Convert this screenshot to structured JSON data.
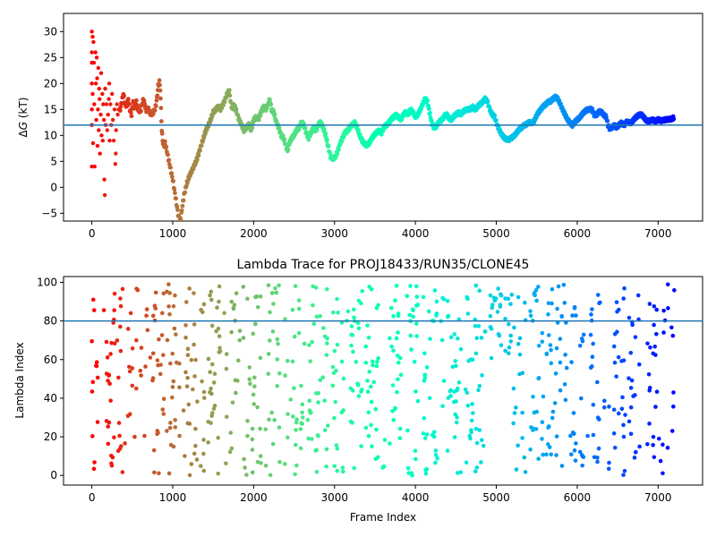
{
  "chart_data": [
    {
      "type": "scatter",
      "title": "",
      "xlabel": "",
      "ylabel": "ΔG (kT)",
      "ylabel_prefix": "Δ",
      "ylabel_var": "G",
      "ylabel_suffix": " (kT)",
      "xlim": [
        -350,
        7550
      ],
      "ylim": [
        -6.5,
        33.5
      ],
      "xticks": [
        0,
        1000,
        2000,
        3000,
        4000,
        5000,
        6000,
        7000
      ],
      "yticks": [
        -5,
        0,
        5,
        10,
        15,
        20,
        25,
        30
      ],
      "ytick_labels": [
        "−5",
        "0",
        "5",
        "10",
        "15",
        "20",
        "25",
        "30"
      ],
      "hline": 12.0,
      "hline_color": "#1f77b4",
      "colormap": "rainbow_reversed",
      "series": [
        {
          "points": [
            [
              0,
              30.0
            ],
            [
              0,
              26.0
            ],
            [
              0,
              24.0
            ],
            [
              0,
              20.0
            ],
            [
              0,
              15.0
            ],
            [
              0,
              12.0
            ],
            [
              0,
              4.0
            ],
            [
              10,
              29.0
            ],
            [
              10,
              18.0
            ],
            [
              15,
              8.5
            ],
            [
              20,
              28.0
            ],
            [
              25,
              24.0
            ],
            [
              30,
              16.0
            ],
            [
              35,
              4.0
            ],
            [
              45,
              26.0
            ],
            [
              50,
              20.0
            ],
            [
              55,
              13.0
            ],
            [
              60,
              25.0
            ],
            [
              65,
              21.0
            ],
            [
              70,
              8.0
            ],
            [
              75,
              15.0
            ],
            [
              80,
              23.0
            ],
            [
              85,
              11.0
            ],
            [
              90,
              19.0
            ],
            [
              95,
              17.0
            ],
            [
              100,
              6.5
            ],
            [
              110,
              14.0
            ],
            [
              115,
              22.0
            ],
            [
              120,
              10.0
            ],
            [
              130,
              18.0
            ],
            [
              135,
              9.0
            ],
            [
              140,
              16.0
            ],
            [
              150,
              13.0
            ],
            [
              155,
              1.5
            ],
            [
              160,
              -1.5
            ],
            [
              165,
              19.0
            ],
            [
              170,
              12.0
            ],
            [
              180,
              16.0
            ],
            [
              190,
              11.0
            ],
            [
              200,
              14.0
            ],
            [
              210,
              17.0
            ],
            [
              215,
              20.0
            ],
            [
              220,
              9.0
            ],
            [
              230,
              16.0
            ],
            [
              240,
              12.0
            ],
            [
              250,
              18.0
            ],
            [
              260,
              13.0
            ],
            [
              270,
              9.0
            ],
            [
              280,
              15.0
            ],
            [
              290,
              4.5
            ],
            [
              295,
              6.5
            ],
            [
              300,
              11.0
            ],
            [
              310,
              16.0
            ],
            [
              320,
              14.0
            ],
            [
              330,
              15.0
            ]
          ]
        }
      ],
      "trace": [
        [
          350,
          15.0
        ],
        [
          370,
          16.5
        ],
        [
          390,
          18.0
        ],
        [
          410,
          16.0
        ],
        [
          430,
          15.5
        ],
        [
          450,
          17.0
        ],
        [
          470,
          15.0
        ],
        [
          490,
          14.0
        ],
        [
          510,
          16.5
        ],
        [
          530,
          15.0
        ],
        [
          550,
          16.5
        ],
        [
          570,
          15.0
        ],
        [
          600,
          14.5
        ],
        [
          620,
          16.0
        ],
        [
          640,
          17.0
        ],
        [
          660,
          15.5
        ],
        [
          680,
          14.5
        ],
        [
          700,
          15.0
        ],
        [
          730,
          14.0
        ],
        [
          760,
          14.5
        ],
        [
          780,
          15.0
        ],
        [
          800,
          16.5
        ],
        [
          810,
          18.0
        ],
        [
          820,
          19.5
        ],
        [
          835,
          20.3
        ],
        [
          845,
          19.0
        ],
        [
          855,
          15.0
        ],
        [
          865,
          11.0
        ],
        [
          875,
          9.0
        ],
        [
          890,
          8.0
        ],
        [
          905,
          8.5
        ],
        [
          920,
          7.5
        ],
        [
          940,
          6.0
        ],
        [
          960,
          4.5
        ],
        [
          980,
          3.0
        ],
        [
          1000,
          1.5
        ],
        [
          1020,
          -0.5
        ],
        [
          1040,
          -2.5
        ],
        [
          1060,
          -4.5
        ],
        [
          1080,
          -6.5
        ],
        [
          1100,
          -6.0
        ],
        [
          1120,
          -3.5
        ],
        [
          1140,
          -1.5
        ],
        [
          1170,
          0.5
        ],
        [
          1200,
          2.0
        ],
        [
          1230,
          3.0
        ],
        [
          1260,
          4.0
        ],
        [
          1290,
          5.0
        ],
        [
          1320,
          6.5
        ],
        [
          1350,
          8.0
        ],
        [
          1380,
          9.5
        ],
        [
          1410,
          11.0
        ],
        [
          1440,
          12.0
        ],
        [
          1470,
          13.0
        ],
        [
          1500,
          14.5
        ],
        [
          1530,
          15.0
        ],
        [
          1560,
          15.5
        ],
        [
          1590,
          15.0
        ],
        [
          1620,
          16.0
        ],
        [
          1650,
          17.0
        ],
        [
          1680,
          18.3
        ],
        [
          1700,
          18.5
        ],
        [
          1720,
          16.0
        ],
        [
          1740,
          15.0
        ],
        [
          1760,
          16.0
        ],
        [
          1780,
          15.0
        ],
        [
          1800,
          14.0
        ],
        [
          1820,
          13.0
        ],
        [
          1850,
          12.0
        ],
        [
          1880,
          11.0
        ],
        [
          1910,
          11.5
        ],
        [
          1940,
          12.0
        ],
        [
          1970,
          11.0
        ],
        [
          2000,
          13.0
        ],
        [
          2030,
          13.5
        ],
        [
          2060,
          13.0
        ],
        [
          2090,
          14.5
        ],
        [
          2120,
          15.5
        ],
        [
          2150,
          15.0
        ],
        [
          2180,
          16.0
        ],
        [
          2200,
          17.0
        ],
        [
          2220,
          15.0
        ],
        [
          2250,
          14.5
        ],
        [
          2280,
          12.5
        ],
        [
          2310,
          11.5
        ],
        [
          2340,
          10.0
        ],
        [
          2370,
          9.5
        ],
        [
          2400,
          8.0
        ],
        [
          2420,
          7.0
        ],
        [
          2440,
          8.5
        ],
        [
          2470,
          9.5
        ],
        [
          2500,
          10.0
        ],
        [
          2530,
          11.0
        ],
        [
          2560,
          11.5
        ],
        [
          2590,
          12.5
        ],
        [
          2620,
          12.0
        ],
        [
          2650,
          10.5
        ],
        [
          2680,
          9.5
        ],
        [
          2710,
          10.5
        ],
        [
          2740,
          11.5
        ],
        [
          2770,
          11.0
        ],
        [
          2800,
          12.0
        ],
        [
          2830,
          12.5
        ],
        [
          2860,
          11.5
        ],
        [
          2890,
          10.0
        ],
        [
          2920,
          8.0
        ],
        [
          2950,
          6.0
        ],
        [
          2980,
          5.5
        ],
        [
          3010,
          5.8
        ],
        [
          3040,
          7.0
        ],
        [
          3070,
          8.5
        ],
        [
          3100,
          9.5
        ],
        [
          3130,
          10.5
        ],
        [
          3160,
          11.0
        ],
        [
          3190,
          11.5
        ],
        [
          3220,
          12.0
        ],
        [
          3250,
          12.5
        ],
        [
          3280,
          11.5
        ],
        [
          3310,
          10.0
        ],
        [
          3340,
          9.0
        ],
        [
          3370,
          8.5
        ],
        [
          3400,
          8.0
        ],
        [
          3430,
          8.5
        ],
        [
          3460,
          9.5
        ],
        [
          3490,
          10.0
        ],
        [
          3520,
          10.5
        ],
        [
          3550,
          11.0
        ],
        [
          3580,
          10.5
        ],
        [
          3610,
          11.5
        ],
        [
          3640,
          12.0
        ],
        [
          3670,
          12.5
        ],
        [
          3700,
          13.0
        ],
        [
          3730,
          13.5
        ],
        [
          3760,
          14.0
        ],
        [
          3790,
          13.5
        ],
        [
          3820,
          13.0
        ],
        [
          3850,
          14.0
        ],
        [
          3880,
          14.5
        ],
        [
          3910,
          14.0
        ],
        [
          3940,
          15.0
        ],
        [
          3970,
          14.5
        ],
        [
          4000,
          13.5
        ],
        [
          4030,
          14.0
        ],
        [
          4060,
          15.0
        ],
        [
          4090,
          16.0
        ],
        [
          4120,
          17.0
        ],
        [
          4150,
          16.5
        ],
        [
          4180,
          14.0
        ],
        [
          4200,
          12.5
        ],
        [
          4230,
          11.5
        ],
        [
          4260,
          11.8
        ],
        [
          4290,
          12.5
        ],
        [
          4320,
          13.0
        ],
        [
          4350,
          13.5
        ],
        [
          4380,
          14.0
        ],
        [
          4410,
          13.5
        ],
        [
          4440,
          13.0
        ],
        [
          4470,
          13.5
        ],
        [
          4500,
          14.0
        ],
        [
          4530,
          14.5
        ],
        [
          4560,
          14.0
        ],
        [
          4590,
          14.5
        ],
        [
          4620,
          15.0
        ],
        [
          4650,
          15.0
        ],
        [
          4680,
          15.0
        ],
        [
          4710,
          15.5
        ],
        [
          4740,
          15.0
        ],
        [
          4770,
          15.5
        ],
        [
          4800,
          16.0
        ],
        [
          4830,
          16.5
        ],
        [
          4860,
          17.0
        ],
        [
          4890,
          16.5
        ],
        [
          4920,
          15.0
        ],
        [
          4950,
          14.0
        ],
        [
          4980,
          13.5
        ],
        [
          5010,
          12.0
        ],
        [
          5040,
          11.0
        ],
        [
          5070,
          10.0
        ],
        [
          5100,
          9.5
        ],
        [
          5130,
          9.3
        ],
        [
          5160,
          9.2
        ],
        [
          5190,
          9.5
        ],
        [
          5220,
          10.0
        ],
        [
          5250,
          10.5
        ],
        [
          5280,
          11.0
        ],
        [
          5310,
          11.5
        ],
        [
          5340,
          12.0
        ],
        [
          5370,
          12.0
        ],
        [
          5400,
          12.5
        ],
        [
          5430,
          12.5
        ],
        [
          5460,
          12.5
        ],
        [
          5490,
          13.5
        ],
        [
          5520,
          14.5
        ],
        [
          5550,
          15.0
        ],
        [
          5580,
          15.5
        ],
        [
          5610,
          16.0
        ],
        [
          5640,
          16.5
        ],
        [
          5670,
          16.5
        ],
        [
          5700,
          17.0
        ],
        [
          5730,
          17.5
        ],
        [
          5760,
          17.0
        ],
        [
          5790,
          16.0
        ],
        [
          5820,
          15.0
        ],
        [
          5850,
          14.0
        ],
        [
          5880,
          13.0
        ],
        [
          5910,
          12.5
        ],
        [
          5940,
          12.0
        ],
        [
          5970,
          12.5
        ],
        [
          6000,
          13.0
        ],
        [
          6030,
          13.5
        ],
        [
          6060,
          14.0
        ],
        [
          6090,
          14.5
        ],
        [
          6120,
          15.0
        ],
        [
          6150,
          15.0
        ],
        [
          6180,
          15.0
        ],
        [
          6210,
          14.0
        ],
        [
          6240,
          14.0
        ],
        [
          6270,
          14.5
        ],
        [
          6300,
          14.5
        ],
        [
          6330,
          14.0
        ],
        [
          6360,
          13.5
        ],
        [
          6380,
          12.0
        ],
        [
          6400,
          11.3
        ],
        [
          6430,
          11.5
        ],
        [
          6460,
          12.0
        ],
        [
          6490,
          11.5
        ],
        [
          6520,
          12.0
        ],
        [
          6550,
          12.5
        ],
        [
          6580,
          12.0
        ],
        [
          6610,
          12.5
        ],
        [
          6640,
          12.5
        ],
        [
          6670,
          12.5
        ],
        [
          6700,
          13.0
        ],
        [
          6730,
          13.5
        ],
        [
          6760,
          14.0
        ],
        [
          6790,
          14.0
        ],
        [
          6820,
          13.5
        ],
        [
          6850,
          13.0
        ],
        [
          6880,
          12.8
        ],
        [
          6910,
          12.8
        ],
        [
          6940,
          13.0
        ],
        [
          6970,
          12.8
        ],
        [
          7000,
          13.0
        ],
        [
          7030,
          12.8
        ],
        [
          7060,
          13.0
        ],
        [
          7090,
          13.0
        ],
        [
          7120,
          13.0
        ],
        [
          7150,
          13.2
        ],
        [
          7180,
          13.3
        ],
        [
          7200,
          13.4
        ]
      ]
    },
    {
      "type": "scatter",
      "title": "Lambda Trace for PROJ18433/RUN35/CLONE45",
      "xlabel": "Frame Index",
      "ylabel": "Lambda Index",
      "xlim": [
        -350,
        7550
      ],
      "ylim": [
        -5,
        103
      ],
      "xticks": [
        0,
        1000,
        2000,
        3000,
        4000,
        5000,
        6000,
        7000
      ],
      "yticks": [
        0,
        20,
        40,
        60,
        80,
        100
      ],
      "hline": 80,
      "hline_color": "#1f77b4",
      "colormap": "rainbow_reversed",
      "frames": 7200,
      "lambda_max": 99,
      "density": "scattered points of lambda index (0–99) over frames, clustered in vertical bands"
    }
  ]
}
